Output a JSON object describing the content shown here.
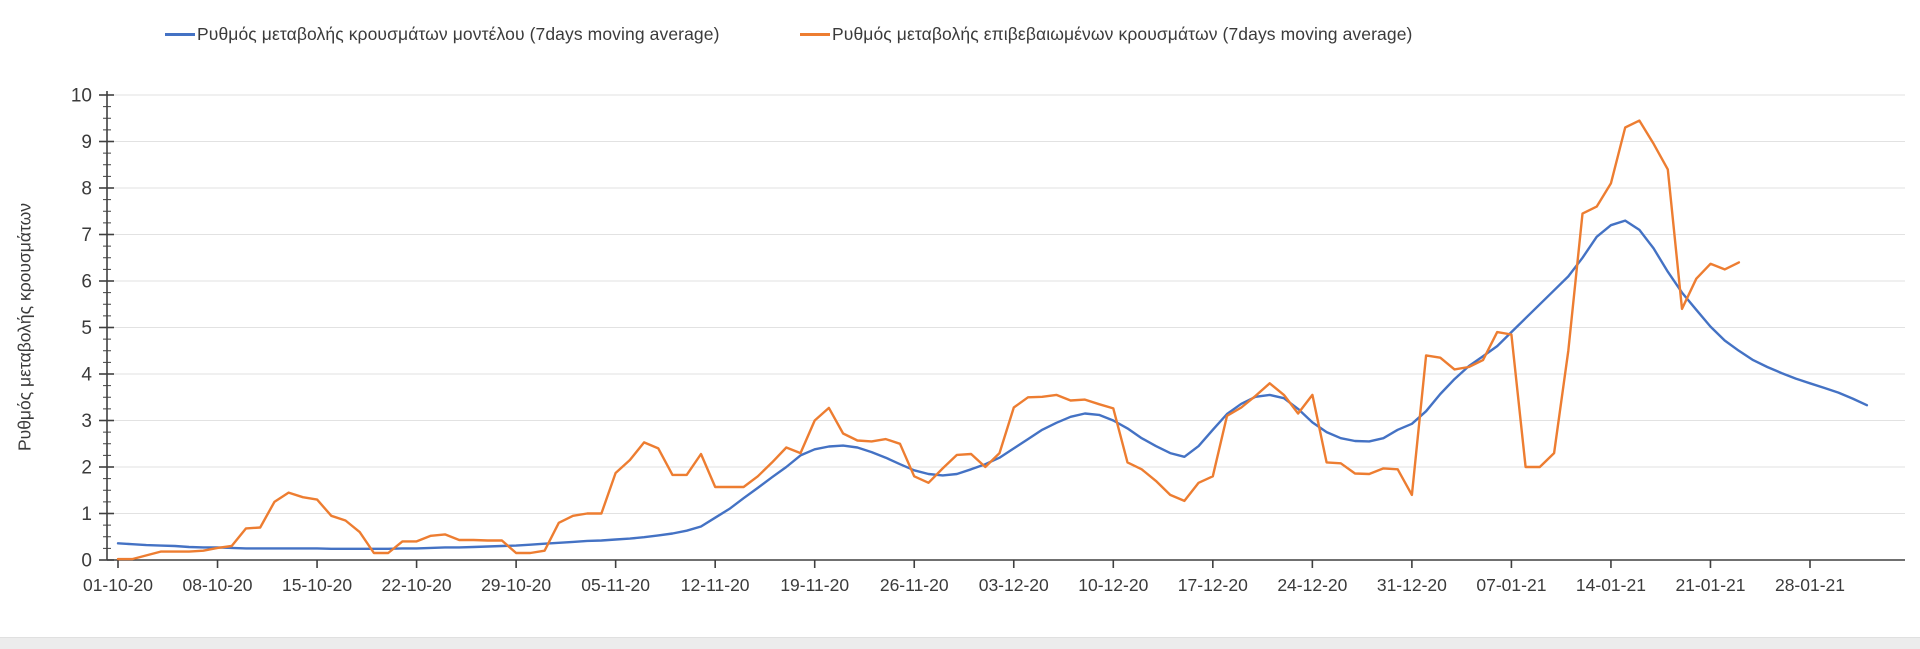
{
  "chart_data": {
    "type": "line",
    "title": "",
    "ylabel": "Ρυθμός μεταβολής κρουσμάτων",
    "xlabel": "",
    "ylim": [
      0,
      10
    ],
    "y_ticks": [
      0,
      1,
      2,
      3,
      4,
      5,
      6,
      7,
      8,
      9,
      10
    ],
    "y_minor_tick_step": 0.25,
    "grid": "horizontal-major",
    "legend_position": "top",
    "x_tick_labels": [
      "01-10-20",
      "08-10-20",
      "15-10-20",
      "22-10-20",
      "29-10-20",
      "05-11-20",
      "12-11-20",
      "19-11-20",
      "26-11-20",
      "03-12-20",
      "10-12-20",
      "17-12-20",
      "24-12-20",
      "31-12-20",
      "07-01-21",
      "14-01-21",
      "21-01-21",
      "28-01-21"
    ],
    "x_tick_days": [
      0,
      7,
      14,
      21,
      28,
      35,
      42,
      49,
      56,
      63,
      70,
      77,
      84,
      91,
      98,
      105,
      112,
      119
    ],
    "colors": {
      "model_series": "#4472C4",
      "confirmed_series": "#ED7D31",
      "grid": "#e2e2e2",
      "axis": "#404040",
      "text": "#3b3b3b"
    },
    "series": [
      {
        "name": "Ρυθμός μεταβολής κρουσμάτων μοντέλου (7days moving average)",
        "color": "#4472C4",
        "start_day": 0,
        "values": [
          0.36,
          0.34,
          0.32,
          0.31,
          0.3,
          0.28,
          0.27,
          0.27,
          0.26,
          0.25,
          0.25,
          0.25,
          0.25,
          0.25,
          0.25,
          0.24,
          0.24,
          0.24,
          0.24,
          0.24,
          0.25,
          0.25,
          0.26,
          0.27,
          0.27,
          0.28,
          0.29,
          0.3,
          0.31,
          0.33,
          0.35,
          0.37,
          0.39,
          0.41,
          0.42,
          0.44,
          0.46,
          0.49,
          0.53,
          0.57,
          0.63,
          0.72,
          0.91,
          1.1,
          1.33,
          1.55,
          1.78,
          2.0,
          2.25,
          2.38,
          2.44,
          2.46,
          2.42,
          2.32,
          2.2,
          2.06,
          1.93,
          1.85,
          1.82,
          1.85,
          1.95,
          2.06,
          2.2,
          2.4,
          2.6,
          2.8,
          2.95,
          3.08,
          3.15,
          3.12,
          3.0,
          2.83,
          2.62,
          2.45,
          2.3,
          2.22,
          2.45,
          2.8,
          3.14,
          3.36,
          3.51,
          3.55,
          3.48,
          3.25,
          2.96,
          2.75,
          2.62,
          2.56,
          2.55,
          2.62,
          2.8,
          2.93,
          3.2,
          3.57,
          3.89,
          4.17,
          4.38,
          4.6,
          4.9,
          5.2,
          5.5,
          5.8,
          6.1,
          6.5,
          6.95,
          7.2,
          7.3,
          7.1,
          6.7,
          6.2,
          5.75,
          5.38,
          5.02,
          4.72,
          4.5,
          4.3,
          4.15,
          4.02,
          3.9,
          3.8,
          3.7,
          3.6,
          3.47,
          3.33
        ]
      },
      {
        "name": "Ρυθμός μεταβολής επιβεβαιωμένων κρουσμάτων (7days moving average)",
        "color": "#ED7D31",
        "start_day": 0,
        "values": [
          0.02,
          0.02,
          0.1,
          0.18,
          0.18,
          0.18,
          0.2,
          0.26,
          0.3,
          0.68,
          0.7,
          1.25,
          1.45,
          1.35,
          1.3,
          0.95,
          0.85,
          0.6,
          0.15,
          0.15,
          0.4,
          0.4,
          0.52,
          0.55,
          0.43,
          0.43,
          0.42,
          0.42,
          0.15,
          0.15,
          0.2,
          0.8,
          0.95,
          1.0,
          1.0,
          1.87,
          2.15,
          2.53,
          2.4,
          1.83,
          1.83,
          2.28,
          1.57,
          1.57,
          1.57,
          1.8,
          2.1,
          2.42,
          2.3,
          3.0,
          3.27,
          2.72,
          2.57,
          2.55,
          2.6,
          2.5,
          1.8,
          1.66,
          1.97,
          2.26,
          2.28,
          2.0,
          2.3,
          3.28,
          3.5,
          3.51,
          3.55,
          3.43,
          3.45,
          3.35,
          3.26,
          2.1,
          1.95,
          1.7,
          1.4,
          1.27,
          1.66,
          1.8,
          3.1,
          3.28,
          3.53,
          3.8,
          3.55,
          3.15,
          3.55,
          2.1,
          2.08,
          1.86,
          1.85,
          1.97,
          1.95,
          1.4,
          4.4,
          4.35,
          4.1,
          4.15,
          4.3,
          4.9,
          4.85,
          2.0,
          2.0,
          2.3,
          4.5,
          7.45,
          7.6,
          8.1,
          9.3,
          9.45,
          8.95,
          8.4,
          5.4,
          6.05,
          6.37,
          6.25,
          6.4
        ]
      }
    ]
  }
}
